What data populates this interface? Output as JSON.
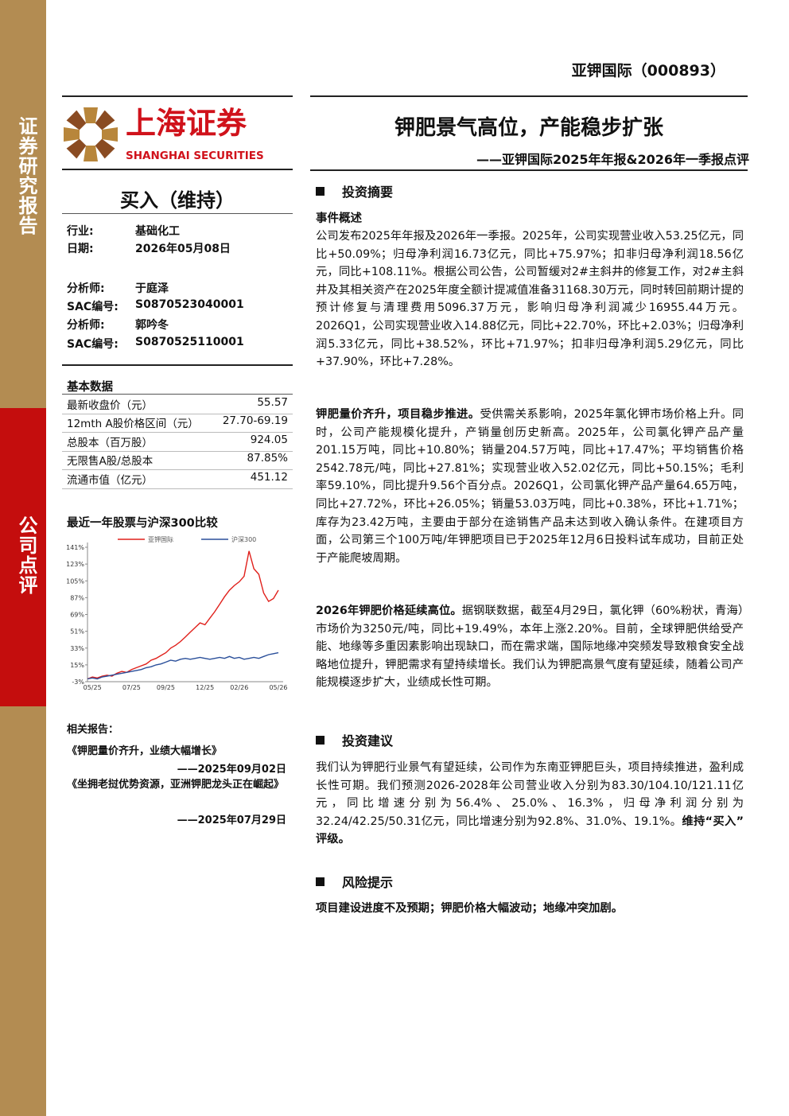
{
  "header": {
    "company": "亚钾国际（000893）"
  },
  "sidebar": {
    "top": "证券研究报告",
    "bottom": "公司点评"
  },
  "logo": {
    "name": "上海证券",
    "english": "SHANGHAI SECURITIES"
  },
  "title": "钾肥景气高位，产能稳步扩张",
  "subtitle": "——亚钾国际2025年年报&2026年一季报点评",
  "rating": "买入（维持）",
  "info": [
    [
      "行业:",
      "基础化工"
    ],
    [
      "日期:",
      "2026年05月08日"
    ],
    [
      "分析师:",
      "于庭泽"
    ],
    [
      "SAC编号:",
      "S0870523040001"
    ],
    [
      "分析师:",
      "郭吟冬"
    ],
    [
      "SAC编号:",
      "S0870525110001"
    ]
  ],
  "basic_data": {
    "title": "基本数据",
    "rows": [
      [
        "最新收盘价（元）",
        "55.57"
      ],
      [
        "12mth A股价格区间（元）",
        "27.70-69.19"
      ],
      [
        "总股本（百万股）",
        "924.05"
      ],
      [
        "无限售A股/总股本",
        "87.85%"
      ],
      [
        "流通市值（亿元）",
        "451.12"
      ]
    ]
  },
  "chart_data": {
    "type": "line",
    "title": "最近一年股票与沪深300比较",
    "categories": [
      null,
      "05/25",
      null,
      null,
      null,
      null,
      null,
      null,
      null,
      "07/25",
      null,
      null,
      null,
      null,
      null,
      null,
      "09/25",
      null,
      null,
      null,
      null,
      null,
      null,
      null,
      "12/25",
      null,
      null,
      null,
      null,
      null,
      null,
      "02/26",
      null,
      null,
      null,
      null,
      null,
      null,
      null,
      "05/26"
    ],
    "series": [
      {
        "name": "亚钾国际",
        "color": "#e0201b",
        "values": [
          0,
          2,
          1,
          3,
          4,
          3,
          6,
          8,
          7,
          10,
          12,
          14,
          16,
          20,
          22,
          25,
          28,
          33,
          36,
          40,
          45,
          50,
          55,
          60,
          58,
          65,
          72,
          80,
          88,
          95,
          100,
          104,
          110,
          137,
          118,
          112,
          92,
          83,
          86,
          95
        ]
      },
      {
        "name": "沪深300",
        "color": "#2a4f9a",
        "values": [
          0,
          1,
          0,
          2,
          3,
          4,
          5,
          6,
          7,
          8,
          9,
          10,
          12,
          13,
          15,
          16,
          18,
          20,
          19,
          21,
          22,
          21,
          22,
          23,
          22,
          21,
          22,
          23,
          22,
          24,
          22,
          23,
          21,
          22,
          23,
          22,
          24,
          26,
          27,
          28
        ]
      }
    ],
    "ylim": [
      -3,
      141
    ],
    "yticks": [
      {
        "value": 141,
        "label": "141%"
      },
      {
        "value": 123,
        "label": "123%"
      },
      {
        "value": 105,
        "label": "105%"
      },
      {
        "value": 87,
        "label": "87%"
      },
      {
        "value": 69,
        "label": "69%"
      },
      {
        "value": 51,
        "label": "51%"
      },
      {
        "value": 33,
        "label": "33%"
      },
      {
        "value": 15,
        "label": "15%"
      },
      {
        "value": -3,
        "label": "-3%"
      }
    ],
    "grid": false
  },
  "related": {
    "title": "相关报告：",
    "items": [
      {
        "title": "《钾肥量价齐升，业绩大幅增长》",
        "date": "——2025年09月02日"
      },
      {
        "title": "《坐拥老挝优势资源，亚洲钾肥龙头正在崛起》",
        "date": "——2025年07月29日"
      }
    ]
  },
  "sections": [
    {
      "heading": "投资摘要",
      "subheading": "事件概述",
      "paragraphs": [
        {
          "text": "公司发布2025年年报及2026年一季报。2025年，公司实现营业收入53.25亿元，同比+50.09%；归母净利润16.73亿元，同比+75.97%；扣非归母净利润18.56亿元，同比+108.11%。根据公司公告，公司暂缓对2#主斜井的修复工作，对2#主斜井及其相关资产在2025年度全额计提减值准备31168.30万元，同时转回前期计提的预计修复与清理费用5096.37万元，影响归母净利润减少16955.44万元。2026Q1，公司实现营业收入14.88亿元，同比+22.70%，环比+2.03%；归母净利润5.33亿元，同比+38.52%，环比+71.97%；扣非归母净利润5.29亿元，同比+37.90%，环比+7.28%。"
        },
        {
          "lead": "钾肥量价齐升，项目稳步推进。",
          "text": "受供需关系影响，2025年氯化钾市场价格上升。同时，公司产能规模化提升，产销量创历史新高。2025年，公司氯化钾产品产量201.15万吨，同比+10.80%；销量204.57万吨，同比+17.47%；平均销售价格2542.78元/吨，同比+27.81%；实现营业收入52.02亿元，同比+50.15%；毛利率59.10%，同比提升9.56个百分点。2026Q1，公司氯化钾产品产量64.65万吨，同比+27.72%，环比+26.05%；销量53.03万吨，同比+0.38%，环比+1.71%；库存为23.42万吨，主要由于部分在途销售产品未达到收入确认条件。在建项目方面，公司第三个100万吨/年钾肥项目已于2025年12月6日投料试车成功，目前正处于产能爬坡周期。"
        },
        {
          "lead": "2026年钾肥价格延续高位。",
          "text": "据钢联数据，截至4月29日，氯化钾（60%粉状，青海）市场价为3250元/吨，同比+19.49%，本年上涨2.20%。目前，全球钾肥供给受产能、地缘等多重因素影响出现缺口，而在需求端，国际地缘冲突频发导致粮食安全战略地位提升，钾肥需求有望持续增长。我们认为钾肥高景气度有望延续，随着公司产能规模逐步扩大，业绩成长性可期。"
        }
      ]
    },
    {
      "heading": "投资建议",
      "paragraphs": [
        {
          "text": "我们认为钾肥行业景气有望延续，公司作为东南亚钾肥巨头，项目持续推进，盈利成长性可期。我们预测2026-2028年公司营业收入分别为83.30/104.10/121.11亿元，同比增速分别为56.4%、25.0%、16.3%，归母净利润分别为32.24/42.25/50.31亿元，同比增速分别为92.8%、31.0%、19.1%。",
          "tail": "维持“买入”评级。"
        }
      ]
    },
    {
      "heading": "风险提示",
      "paragraphs": [
        {
          "lead": "项目建设进度不及预期；钾肥价格大幅波动；地缘冲突加剧。"
        }
      ]
    }
  ]
}
